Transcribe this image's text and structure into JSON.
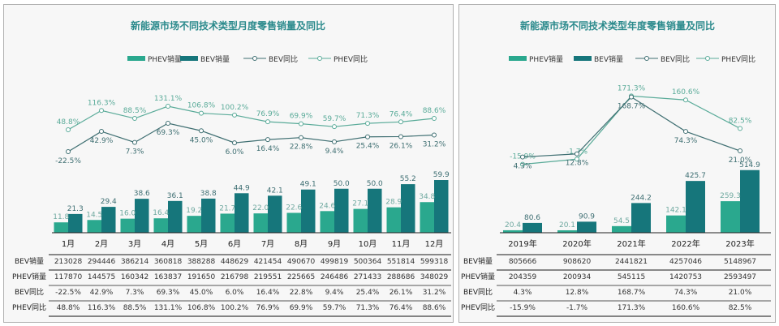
{
  "colors": {
    "phev_bar": "#2aa88e",
    "bev_bar": "#16767b",
    "phev_line": "#5aab99",
    "bev_line": "#3f6f72",
    "title": "#2b8a8c"
  },
  "chart_data": [
    {
      "type": "bar",
      "title": "新能源市场不同技术类型月度零售销量及同比",
      "legend": [
        "PHEV销量",
        "BEV销量",
        "BEV同比",
        "PHEV同比"
      ],
      "legend_position": "top",
      "categories": [
        "1月",
        "2月",
        "3月",
        "4月",
        "5月",
        "6月",
        "7月",
        "8月",
        "9月",
        "10月",
        "11月",
        "12月"
      ],
      "series": [
        {
          "name": "PHEV销量",
          "kind": "bar",
          "values": [
            11.8,
            14.5,
            16.0,
            16.4,
            19.2,
            21.7,
            22.0,
            22.6,
            24.6,
            27.1,
            28.9,
            34.8
          ]
        },
        {
          "name": "BEV销量",
          "kind": "bar",
          "values": [
            21.3,
            29.4,
            38.6,
            36.1,
            38.8,
            44.9,
            42.1,
            49.1,
            50.0,
            50.0,
            55.2,
            59.9
          ]
        },
        {
          "name": "BEV同比",
          "kind": "line",
          "values": [
            -22.5,
            42.9,
            7.3,
            69.3,
            45.0,
            6.0,
            16.4,
            22.8,
            9.4,
            25.4,
            26.1,
            31.2
          ]
        },
        {
          "name": "PHEV同比",
          "kind": "line",
          "values": [
            48.8,
            116.3,
            88.5,
            131.1,
            106.8,
            100.2,
            76.9,
            69.9,
            59.7,
            71.3,
            76.4,
            88.6
          ]
        }
      ],
      "bar_labels": {
        "PHEV": [
          "11.8",
          "14.5",
          "16.0",
          "16.4",
          "19.2",
          "21.7",
          "22.0",
          "22.6",
          "24.6",
          "27.1",
          "28.9",
          "34.8"
        ],
        "BEV": [
          "21.3",
          "29.4",
          "38.6",
          "36.1",
          "38.8",
          "44.9",
          "42.1",
          "49.1",
          "50.0",
          "50.0",
          "55.2",
          "59.9"
        ],
        "BEV_yoy": [
          "-22.5%",
          "42.9%",
          "7.3%",
          "69.3%",
          "45.0%",
          "6.0%",
          "16.4%",
          "22.8%",
          "9.4%",
          "25.4%",
          "26.1%",
          "31.2%"
        ],
        "PHEV_yoy": [
          "48.8%",
          "116.3%",
          "88.5%",
          "131.1%",
          "106.8%",
          "100.2%",
          "76.9%",
          "69.9%",
          "59.7%",
          "71.3%",
          "76.4%",
          "88.6%"
        ]
      },
      "table": {
        "row_labels": [
          "BEV销量",
          "PHEV销量",
          "BEV同比",
          "PHEV同比"
        ],
        "rows": [
          [
            "213028",
            "294446",
            "386214",
            "360818",
            "388288",
            "448629",
            "421454",
            "490670",
            "499819",
            "500364",
            "551814",
            "599318"
          ],
          [
            "117870",
            "144575",
            "160342",
            "163837",
            "191650",
            "216798",
            "219551",
            "225665",
            "246486",
            "271433",
            "288686",
            "348029"
          ],
          [
            "-22.5%",
            "42.9%",
            "7.3%",
            "69.3%",
            "45.0%",
            "6.0%",
            "16.4%",
            "22.8%",
            "9.4%",
            "25.4%",
            "26.1%",
            "31.2%"
          ],
          [
            "48.8%",
            "116.3%",
            "88.5%",
            "131.1%",
            "106.8%",
            "100.2%",
            "76.9%",
            "69.9%",
            "59.7%",
            "71.3%",
            "76.4%",
            "88.6%"
          ]
        ]
      }
    },
    {
      "type": "bar",
      "title": "新能源市场不同技术类型年度零售销量及同比",
      "legend": [
        "PHEV销量",
        "BEV销量",
        "BEV同比",
        "PHEV同比"
      ],
      "legend_position": "top",
      "categories": [
        "2019年",
        "2020年",
        "2021年",
        "2022年",
        "2023年"
      ],
      "series": [
        {
          "name": "PHEV销量",
          "kind": "bar",
          "values": [
            20.4,
            20.1,
            54.5,
            142.1,
            259.3
          ]
        },
        {
          "name": "BEV销量",
          "kind": "bar",
          "values": [
            80.6,
            90.9,
            244.2,
            425.7,
            514.9
          ]
        },
        {
          "name": "BEV同比",
          "kind": "line",
          "values": [
            4.3,
            12.8,
            168.7,
            74.3,
            21.0
          ]
        },
        {
          "name": "PHEV同比",
          "kind": "line",
          "values": [
            -15.9,
            -1.7,
            171.3,
            160.6,
            82.5
          ]
        }
      ],
      "bar_labels": {
        "PHEV": [
          "20.4",
          "20.1",
          "54.5",
          "142.1",
          "259.3"
        ],
        "BEV": [
          "80.6",
          "90.9",
          "244.2",
          "425.7",
          "514.9"
        ],
        "BEV_yoy": [
          "4.3%",
          "12.8%",
          "168.7%",
          "74.3%",
          "21.0%"
        ],
        "PHEV_yoy": [
          "-15.9%",
          "-1.7%",
          "171.3%",
          "160.6%",
          "82.5%"
        ]
      },
      "table": {
        "row_labels": [
          "BEV销量",
          "PHEV销量",
          "BEV同比",
          "PHEV同比"
        ],
        "rows": [
          [
            "805666",
            "908620",
            "2441821",
            "4257046",
            "5148967"
          ],
          [
            "204359",
            "200934",
            "545115",
            "1420753",
            "2593497"
          ],
          [
            "4.3%",
            "12.8%",
            "168.7%",
            "74.3%",
            "21.0%"
          ],
          [
            "-15.9%",
            "-1.7%",
            "171.3%",
            "160.6%",
            "82.5%"
          ]
        ]
      }
    }
  ]
}
